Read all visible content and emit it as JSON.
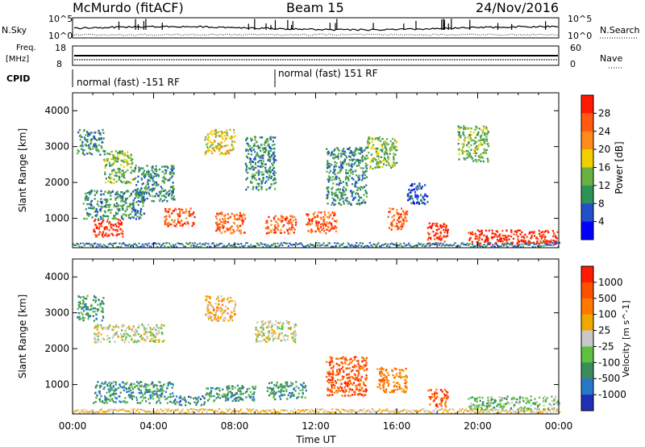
{
  "header": {
    "site": "McMurdo (fitACF)",
    "beam": "Beam 15",
    "date": "24/Nov/2016"
  },
  "strip": {
    "nsky_label": "N.Sky",
    "nsky_ticks": [
      "10^5",
      "10^0"
    ],
    "nsearch_label": "N.Search",
    "nsearch_ticks": [
      "10^5",
      "10^0"
    ],
    "freq_label_1": "Freq.",
    "freq_label_2": "[MHz]",
    "freq_ticks": [
      "18",
      "8"
    ],
    "nave_label": "Nave",
    "nave_ticks": [
      "60",
      "0"
    ],
    "cpid_label": "CPID",
    "cpid_segments": [
      {
        "label": "normal (fast) -151 RF",
        "start_hour": 0,
        "end_hour": 10
      },
      {
        "label": "normal (fast) 151 RF",
        "start_hour": 10,
        "end_hour": 24
      }
    ]
  },
  "chart_data": [
    {
      "type": "heatmap",
      "quantity": "power",
      "ylabel": "Slant Range [km]",
      "xlabel": "Time UT",
      "ylim": [
        180,
        4500
      ],
      "xlim": [
        0,
        24
      ],
      "yticks": [
        "1000",
        "2000",
        "3000",
        "4000"
      ],
      "colorbar_label": "Power [dB]",
      "colorbar_ticks": [
        "4",
        "8",
        "12",
        "16",
        "20",
        "24",
        "28"
      ],
      "colorbar_colors": [
        "#0000ff",
        "#2350c8",
        "#2e9256",
        "#6ab043",
        "#f0d000",
        "#ff8c1a",
        "#ff5a10",
        "#ff1a00"
      ],
      "scatter_blobs": [
        {
          "x": [
            0.2,
            1.5
          ],
          "y": [
            2800,
            3500
          ],
          "level": 2
        },
        {
          "x": [
            1.0,
            2.5
          ],
          "y": [
            500,
            1000
          ],
          "level": 7
        },
        {
          "x": [
            0.5,
            3.5
          ],
          "y": [
            1000,
            1800
          ],
          "level": 2
        },
        {
          "x": [
            1.5,
            3.0
          ],
          "y": [
            2000,
            2900
          ],
          "level": 3
        },
        {
          "x": [
            3.0,
            5.0
          ],
          "y": [
            1500,
            2500
          ],
          "level": 2
        },
        {
          "x": [
            4.5,
            6.0
          ],
          "y": [
            800,
            1300
          ],
          "level": 6
        },
        {
          "x": [
            6.5,
            8.0
          ],
          "y": [
            2800,
            3500
          ],
          "level": 4
        },
        {
          "x": [
            7.0,
            8.5
          ],
          "y": [
            600,
            1200
          ],
          "level": 6
        },
        {
          "x": [
            8.5,
            10.0
          ],
          "y": [
            1800,
            3300
          ],
          "level": 2
        },
        {
          "x": [
            9.5,
            11.0
          ],
          "y": [
            600,
            1100
          ],
          "level": 6
        },
        {
          "x": [
            11.5,
            13.0
          ],
          "y": [
            600,
            1200
          ],
          "level": 6
        },
        {
          "x": [
            12.5,
            14.5
          ],
          "y": [
            1400,
            3000
          ],
          "level": 2
        },
        {
          "x": [
            14.5,
            16.0
          ],
          "y": [
            2400,
            3300
          ],
          "level": 3
        },
        {
          "x": [
            15.5,
            16.5
          ],
          "y": [
            700,
            1300
          ],
          "level": 6
        },
        {
          "x": [
            16.5,
            17.5
          ],
          "y": [
            1400,
            2000
          ],
          "level": 1
        },
        {
          "x": [
            17.5,
            18.5
          ],
          "y": [
            300,
            900
          ],
          "level": 7
        },
        {
          "x": [
            19.0,
            20.5
          ],
          "y": [
            2600,
            3600
          ],
          "level": 3
        },
        {
          "x": [
            19.5,
            24.0
          ],
          "y": [
            300,
            700
          ],
          "level": 7
        }
      ]
    },
    {
      "type": "heatmap",
      "quantity": "velocity",
      "ylabel": "Slant Range [km]",
      "xlabel": "Time UT",
      "ylim": [
        180,
        4500
      ],
      "xlim": [
        0,
        24
      ],
      "yticks": [
        "1000",
        "2000",
        "3000",
        "4000"
      ],
      "xticks": [
        "00:00",
        "04:00",
        "08:00",
        "12:00",
        "16:00",
        "20:00",
        "00:00"
      ],
      "colorbar_label": "Velocity [m s^-1]",
      "colorbar_ticks": [
        "1000",
        "500",
        "100",
        "25",
        "-25",
        "-100",
        "-500",
        "-1000"
      ],
      "colorbar_colors": [
        "#1e2fb8",
        "#2878c8",
        "#3a8c5a",
        "#5cc040",
        "#c8c8c8",
        "#f0a800",
        "#ff7800",
        "#ff5000",
        "#ff1a00"
      ],
      "scatter_blobs": [
        {
          "x": [
            0.2,
            1.5
          ],
          "y": [
            2800,
            3500
          ],
          "level": 2
        },
        {
          "x": [
            1.0,
            4.5
          ],
          "y": [
            2200,
            2700
          ],
          "level": 4
        },
        {
          "x": [
            1.0,
            5.0
          ],
          "y": [
            500,
            1100
          ],
          "level": 2
        },
        {
          "x": [
            5.0,
            6.5
          ],
          "y": [
            450,
            700
          ],
          "level": 1
        },
        {
          "x": [
            6.5,
            8.0
          ],
          "y": [
            2800,
            3500
          ],
          "level": 5
        },
        {
          "x": [
            6.5,
            9.0
          ],
          "y": [
            550,
            1000
          ],
          "level": 2
        },
        {
          "x": [
            9.0,
            11.0
          ],
          "y": [
            2200,
            2800
          ],
          "level": 4
        },
        {
          "x": [
            9.5,
            11.5
          ],
          "y": [
            600,
            1100
          ],
          "level": 2
        },
        {
          "x": [
            12.5,
            14.5
          ],
          "y": [
            700,
            1800
          ],
          "level": 7
        },
        {
          "x": [
            15.0,
            16.5
          ],
          "y": [
            800,
            1500
          ],
          "level": 6
        },
        {
          "x": [
            17.5,
            18.5
          ],
          "y": [
            400,
            900
          ],
          "level": 7
        },
        {
          "x": [
            19.5,
            24.0
          ],
          "y": [
            300,
            700
          ],
          "level": 3
        }
      ]
    }
  ]
}
